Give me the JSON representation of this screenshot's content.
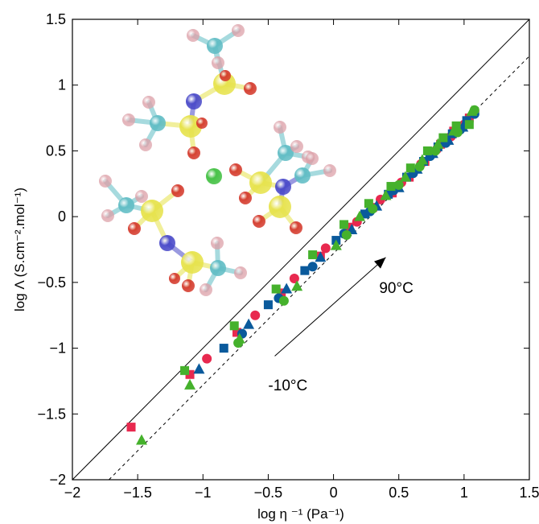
{
  "chart_data": {
    "type": "scatter",
    "title": "",
    "xlabel": "log η ⁻¹ (Pa⁻¹)",
    "ylabel": "log Λ (S.cm⁻².mol⁻¹)",
    "xlim": [
      -2,
      1.5
    ],
    "ylim": [
      -2,
      1.5
    ],
    "x_ticks": [
      -2,
      -1.5,
      -1,
      -0.5,
      0,
      0.5,
      1,
      1.5
    ],
    "y_ticks": [
      -2,
      -1.5,
      -1,
      -0.5,
      0,
      0.5,
      1,
      1.5
    ],
    "x_tick_labels": [
      "−2",
      "−1.5",
      "−1",
      "−0.5",
      "0",
      "0.5",
      "1",
      "1.5"
    ],
    "y_tick_labels": [
      "−2",
      "−1.5",
      "−1",
      "−0.5",
      "0",
      "0.5",
      "1",
      "1.5"
    ],
    "grid": false,
    "colors": {
      "red": "#e8294f",
      "blue": "#0a5a9c",
      "green": "#45b12c"
    },
    "reference_lines": [
      {
        "style": "solid",
        "points": [
          [
            -2,
            -2
          ],
          [
            1.5,
            1.5
          ]
        ]
      },
      {
        "style": "dashed",
        "points": [
          [
            -1.72,
            -2
          ],
          [
            1.5,
            1.22
          ]
        ]
      }
    ],
    "annotations": [
      {
        "text": "90°C",
        "x": 0.35,
        "y": -0.58
      },
      {
        "text": "-10°C",
        "x": -0.5,
        "y": -1.32
      }
    ],
    "arrow": {
      "from": [
        -0.45,
        -1.06
      ],
      "to": [
        0.4,
        -0.31
      ]
    },
    "series": [
      {
        "color": "red",
        "marker": "square",
        "points": [
          [
            -1.55,
            -1.6
          ],
          [
            -1.1,
            -1.2
          ],
          [
            -0.74,
            -0.88
          ],
          [
            -0.4,
            -0.58
          ],
          [
            -0.1,
            -0.3
          ],
          [
            0.12,
            -0.08
          ],
          [
            0.3,
            0.07
          ],
          [
            0.45,
            0.18
          ],
          [
            0.58,
            0.3
          ],
          [
            0.7,
            0.42
          ],
          [
            0.82,
            0.55
          ],
          [
            0.92,
            0.65
          ],
          [
            1.04,
            0.75
          ]
        ]
      },
      {
        "color": "red",
        "marker": "circle",
        "points": [
          [
            -0.97,
            -1.08
          ],
          [
            -0.6,
            -0.75
          ],
          [
            -0.3,
            -0.47
          ],
          [
            -0.06,
            -0.24
          ],
          [
            0.18,
            -0.04
          ],
          [
            0.36,
            0.13
          ],
          [
            0.52,
            0.26
          ],
          [
            0.67,
            0.4
          ],
          [
            0.79,
            0.51
          ],
          [
            0.9,
            0.61
          ],
          [
            1.0,
            0.7
          ],
          [
            1.08,
            0.8
          ]
        ]
      },
      {
        "color": "blue",
        "marker": "square",
        "points": [
          [
            -0.84,
            -1.0
          ],
          [
            -0.5,
            -0.67
          ],
          [
            -0.22,
            -0.41
          ],
          [
            0.02,
            -0.18
          ],
          [
            0.24,
            0.02
          ],
          [
            0.42,
            0.17
          ],
          [
            0.56,
            0.3
          ],
          [
            0.69,
            0.42
          ],
          [
            0.8,
            0.53
          ],
          [
            0.91,
            0.63
          ],
          [
            1.02,
            0.73
          ]
        ]
      },
      {
        "color": "blue",
        "marker": "triangle",
        "points": [
          [
            -1.03,
            -1.16
          ],
          [
            -0.65,
            -0.82
          ],
          [
            -0.36,
            -0.55
          ],
          [
            -0.1,
            -0.31
          ],
          [
            0.14,
            -0.1
          ],
          [
            0.33,
            0.08
          ],
          [
            0.5,
            0.22
          ],
          [
            0.64,
            0.36
          ],
          [
            0.76,
            0.48
          ],
          [
            0.88,
            0.58
          ],
          [
            0.99,
            0.68
          ]
        ]
      },
      {
        "color": "blue",
        "marker": "circle",
        "points": [
          [
            -0.7,
            -0.89
          ],
          [
            -0.42,
            -0.62
          ],
          [
            -0.16,
            -0.38
          ],
          [
            0.08,
            -0.13
          ],
          [
            0.28,
            0.04
          ],
          [
            0.46,
            0.2
          ],
          [
            0.61,
            0.33
          ],
          [
            0.74,
            0.46
          ],
          [
            0.86,
            0.56
          ],
          [
            0.97,
            0.66
          ],
          [
            1.08,
            0.78
          ]
        ]
      },
      {
        "color": "green",
        "marker": "square",
        "points": [
          [
            -1.14,
            -1.17
          ],
          [
            -0.76,
            -0.83
          ],
          [
            -0.44,
            -0.55
          ],
          [
            -0.16,
            -0.29
          ],
          [
            0.08,
            -0.06
          ],
          [
            0.27,
            0.1
          ],
          [
            0.44,
            0.23
          ],
          [
            0.59,
            0.37
          ],
          [
            0.72,
            0.5
          ],
          [
            0.84,
            0.6
          ],
          [
            0.94,
            0.69
          ],
          [
            1.04,
            0.7
          ]
        ]
      },
      {
        "color": "green",
        "marker": "triangle",
        "points": [
          [
            -1.47,
            -1.7
          ],
          [
            -1.1,
            -1.28
          ],
          [
            -0.72,
            -0.93
          ],
          [
            -0.28,
            -0.53
          ],
          [
            0.02,
            -0.22
          ],
          [
            0.2,
            0.0
          ],
          [
            0.4,
            0.16
          ],
          [
            0.55,
            0.3
          ],
          [
            0.68,
            0.43
          ],
          [
            0.8,
            0.55
          ],
          [
            0.92,
            0.65
          ],
          [
            1.06,
            0.8
          ]
        ]
      },
      {
        "color": "green",
        "marker": "circle",
        "points": [
          [
            -0.73,
            -0.96
          ],
          [
            -0.38,
            -0.64
          ],
          [
            0.1,
            -0.14
          ],
          [
            0.3,
            0.06
          ],
          [
            0.5,
            0.24
          ],
          [
            0.66,
            0.38
          ],
          [
            0.78,
            0.5
          ],
          [
            0.95,
            0.64
          ],
          [
            1.08,
            0.81
          ]
        ]
      }
    ]
  }
}
